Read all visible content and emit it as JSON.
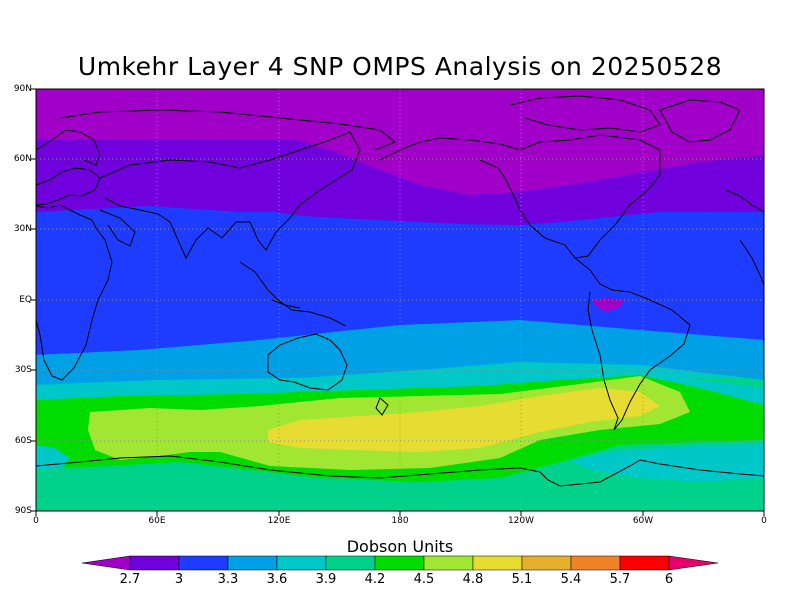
{
  "title": "Umkehr Layer 4 SNP OMPS Analysis on 20250528",
  "colorbar": {
    "title": "Dobson Units",
    "ticks": [
      "2.7",
      "3",
      "3.3",
      "3.6",
      "3.9",
      "4.2",
      "4.5",
      "4.8",
      "5.1",
      "5.4",
      "5.7",
      "6"
    ],
    "colors": [
      "#a000c8",
      "#7000dc",
      "#1e3cff",
      "#00a0e6",
      "#00c8c8",
      "#00d28c",
      "#00dc00",
      "#a0e632",
      "#e6dc32",
      "#e6af2d",
      "#f08228",
      "#fa0000",
      "#e6006e"
    ]
  },
  "chart_data": {
    "type": "heatmap",
    "title": "Umkehr Layer 4 SNP OMPS Analysis on 20250528",
    "units": "Dobson Units",
    "y_tick_labels": [
      "90N",
      "60N",
      "30N",
      "EQ",
      "30S",
      "60S",
      "90S"
    ],
    "x_tick_labels": [
      "0",
      "60E",
      "120E",
      "180",
      "120W",
      "60W",
      "0"
    ],
    "lon_range": [
      0,
      360
    ],
    "lat_range": [
      -90,
      90
    ],
    "grid": "dotted",
    "colorbar_levels": [
      2.7,
      3.0,
      3.3,
      3.6,
      3.9,
      4.2,
      4.5,
      4.8,
      5.1,
      5.4,
      5.7,
      6.0
    ],
    "zonal_bands_approx": [
      {
        "lat_from": 90,
        "lat_to": 45,
        "value_range": "2.7-3.0"
      },
      {
        "lat_from": 45,
        "lat_to": 30,
        "value_range": "3.0-3.3"
      },
      {
        "lat_from": 30,
        "lat_to": -20,
        "value_range": "3.3-3.6"
      },
      {
        "lat_from": -20,
        "lat_to": -30,
        "value_range": "3.6-3.9"
      },
      {
        "lat_from": -30,
        "lat_to": -38,
        "value_range": "3.9-4.2"
      },
      {
        "lat_from": -38,
        "lat_to": -45,
        "value_range": "4.2-4.5"
      },
      {
        "lat_from": -45,
        "lat_to": -60,
        "value_range": "4.8-5.1"
      },
      {
        "lat_from": -60,
        "lat_to": -72,
        "value_range": "4.5-4.8"
      },
      {
        "lat_from": -72,
        "lat_to": -90,
        "value_range": "4.2-4.5"
      }
    ]
  }
}
